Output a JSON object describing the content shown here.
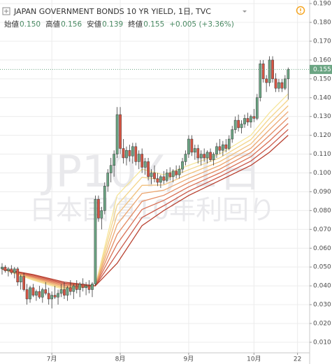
{
  "chart_data": {
    "type": "candlestick",
    "title": "JAPAN GOVERNMENT BONDS 10 YR YIELD, 1日, TVC",
    "ohlc_header": [
      "始値",
      "0.150",
      "高値",
      "0.156",
      "安値",
      "0.139",
      "終値",
      "0.155",
      "+0.005 (+3.36%)"
    ],
    "watermark": [
      "JP10Y, 1日",
      "日本国債10年利回り"
    ],
    "grid": true,
    "up_color": "#6ba583",
    "down_color": "#d75442",
    "xlim": [
      -0.67,
      98.9
    ],
    "ylim": [
      0.0044,
      0.1919
    ],
    "xticks": [
      {
        "value": 16,
        "label": "7月"
      },
      {
        "value": 38,
        "label": "8月"
      },
      {
        "value": 60,
        "label": "9月"
      },
      {
        "value": 81,
        "label": "10月"
      },
      {
        "value": 95,
        "label": "22"
      }
    ],
    "yticks": [
      {
        "value": 0.01,
        "label": "0.010"
      },
      {
        "value": 0.02,
        "label": "0.020"
      },
      {
        "value": 0.03,
        "label": "0.030"
      },
      {
        "value": 0.04,
        "label": "0.040"
      },
      {
        "value": 0.05,
        "label": "0.050"
      },
      {
        "value": 0.06,
        "label": "0.060"
      },
      {
        "value": 0.07,
        "label": "0.070"
      },
      {
        "value": 0.08,
        "label": "0.080"
      },
      {
        "value": 0.09,
        "label": "0.090"
      },
      {
        "value": 0.1,
        "label": "0.100"
      },
      {
        "value": 0.11,
        "label": "0.110"
      },
      {
        "value": 0.12,
        "label": "0.120"
      },
      {
        "value": 0.13,
        "label": "0.130"
      },
      {
        "value": 0.14,
        "label": "0.140"
      },
      {
        "value": 0.15,
        "label": "0.150"
      },
      {
        "value": 0.16,
        "label": "0.160"
      },
      {
        "value": 0.17,
        "label": "0.170"
      },
      {
        "value": 0.18,
        "label": "0.180"
      },
      {
        "value": 0.19,
        "label": "0.190"
      }
    ],
    "last_price": {
      "value": 0.155,
      "label": "0.155"
    },
    "candles": [
      [
        0.049,
        0.052,
        0.046,
        0.05
      ],
      [
        0.05,
        0.051,
        0.047,
        0.048
      ],
      [
        0.048,
        0.05,
        0.045,
        0.049
      ],
      [
        0.049,
        0.051,
        0.046,
        0.047
      ],
      [
        0.047,
        0.05,
        0.044,
        0.049
      ],
      [
        0.049,
        0.05,
        0.04,
        0.042
      ],
      [
        0.042,
        0.046,
        0.038,
        0.045
      ],
      [
        0.045,
        0.047,
        0.037,
        0.038
      ],
      [
        0.038,
        0.041,
        0.03,
        0.033
      ],
      [
        0.033,
        0.04,
        0.031,
        0.039
      ],
      [
        0.039,
        0.041,
        0.034,
        0.035
      ],
      [
        0.035,
        0.038,
        0.032,
        0.037
      ],
      [
        0.037,
        0.04,
        0.033,
        0.034
      ],
      [
        0.034,
        0.039,
        0.031,
        0.038
      ],
      [
        0.038,
        0.042,
        0.035,
        0.036
      ],
      [
        0.036,
        0.039,
        0.03,
        0.033
      ],
      [
        0.033,
        0.037,
        0.028,
        0.035
      ],
      [
        0.035,
        0.04,
        0.033,
        0.034
      ],
      [
        0.034,
        0.038,
        0.03,
        0.036
      ],
      [
        0.036,
        0.041,
        0.034,
        0.038
      ],
      [
        0.038,
        0.042,
        0.033,
        0.035
      ],
      [
        0.035,
        0.04,
        0.032,
        0.039
      ],
      [
        0.039,
        0.043,
        0.035,
        0.037
      ],
      [
        0.037,
        0.041,
        0.033,
        0.04
      ],
      [
        0.04,
        0.043,
        0.036,
        0.038
      ],
      [
        0.038,
        0.042,
        0.034,
        0.041
      ],
      [
        0.041,
        0.044,
        0.037,
        0.039
      ],
      [
        0.039,
        0.042,
        0.035,
        0.04
      ],
      [
        0.04,
        0.043,
        0.036,
        0.038
      ],
      [
        0.038,
        0.042,
        0.034,
        0.041
      ],
      [
        0.041,
        0.088,
        0.04,
        0.086
      ],
      [
        0.086,
        0.088,
        0.074,
        0.076
      ],
      [
        0.076,
        0.082,
        0.07,
        0.08
      ],
      [
        0.08,
        0.095,
        0.078,
        0.093
      ],
      [
        0.093,
        0.102,
        0.09,
        0.1
      ],
      [
        0.1,
        0.108,
        0.095,
        0.104
      ],
      [
        0.104,
        0.112,
        0.098,
        0.11
      ],
      [
        0.11,
        0.135,
        0.108,
        0.131
      ],
      [
        0.131,
        0.135,
        0.11,
        0.113
      ],
      [
        0.113,
        0.118,
        0.105,
        0.108
      ],
      [
        0.108,
        0.114,
        0.104,
        0.112
      ],
      [
        0.112,
        0.115,
        0.106,
        0.109
      ],
      [
        0.109,
        0.116,
        0.105,
        0.114
      ],
      [
        0.114,
        0.116,
        0.104,
        0.106
      ],
      [
        0.106,
        0.112,
        0.102,
        0.11
      ],
      [
        0.11,
        0.113,
        0.1,
        0.103
      ],
      [
        0.103,
        0.108,
        0.099,
        0.106
      ],
      [
        0.106,
        0.108,
        0.096,
        0.098
      ],
      [
        0.098,
        0.102,
        0.094,
        0.1
      ],
      [
        0.1,
        0.104,
        0.095,
        0.097
      ],
      [
        0.097,
        0.1,
        0.093,
        0.095
      ],
      [
        0.095,
        0.099,
        0.092,
        0.098
      ],
      [
        0.098,
        0.101,
        0.094,
        0.096
      ],
      [
        0.096,
        0.102,
        0.095,
        0.1
      ],
      [
        0.1,
        0.103,
        0.096,
        0.098
      ],
      [
        0.098,
        0.102,
        0.095,
        0.101
      ],
      [
        0.101,
        0.104,
        0.097,
        0.099
      ],
      [
        0.099,
        0.104,
        0.097,
        0.102
      ],
      [
        0.102,
        0.108,
        0.1,
        0.106
      ],
      [
        0.106,
        0.112,
        0.104,
        0.11
      ],
      [
        0.11,
        0.12,
        0.108,
        0.118
      ],
      [
        0.118,
        0.12,
        0.109,
        0.111
      ],
      [
        0.111,
        0.115,
        0.107,
        0.113
      ],
      [
        0.113,
        0.115,
        0.105,
        0.108
      ],
      [
        0.108,
        0.112,
        0.104,
        0.11
      ],
      [
        0.11,
        0.113,
        0.106,
        0.108
      ],
      [
        0.108,
        0.112,
        0.105,
        0.111
      ],
      [
        0.111,
        0.113,
        0.106,
        0.107
      ],
      [
        0.107,
        0.111,
        0.104,
        0.11
      ],
      [
        0.11,
        0.116,
        0.108,
        0.114
      ],
      [
        0.114,
        0.118,
        0.11,
        0.112
      ],
      [
        0.112,
        0.117,
        0.109,
        0.115
      ],
      [
        0.115,
        0.118,
        0.111,
        0.113
      ],
      [
        0.113,
        0.12,
        0.112,
        0.118
      ],
      [
        0.118,
        0.125,
        0.116,
        0.123
      ],
      [
        0.123,
        0.13,
        0.121,
        0.128
      ],
      [
        0.128,
        0.131,
        0.122,
        0.124
      ],
      [
        0.124,
        0.128,
        0.121,
        0.126
      ],
      [
        0.126,
        0.131,
        0.124,
        0.129
      ],
      [
        0.129,
        0.132,
        0.125,
        0.127
      ],
      [
        0.127,
        0.131,
        0.124,
        0.13
      ],
      [
        0.13,
        0.134,
        0.127,
        0.129
      ],
      [
        0.129,
        0.142,
        0.128,
        0.14
      ],
      [
        0.14,
        0.16,
        0.138,
        0.158
      ],
      [
        0.158,
        0.16,
        0.148,
        0.15
      ],
      [
        0.15,
        0.152,
        0.143,
        0.148
      ],
      [
        0.148,
        0.162,
        0.146,
        0.16
      ],
      [
        0.16,
        0.162,
        0.148,
        0.15
      ],
      [
        0.15,
        0.153,
        0.143,
        0.145
      ],
      [
        0.145,
        0.15,
        0.143,
        0.148
      ],
      [
        0.148,
        0.15,
        0.143,
        0.145
      ],
      [
        0.145,
        0.152,
        0.144,
        0.15
      ],
      [
        0.15,
        0.156,
        0.139,
        0.155
      ]
    ],
    "series": [
      {
        "color": "#f6e59a",
        "x": [
          0,
          10,
          20,
          30,
          37,
          45,
          52,
          60,
          70,
          80,
          86,
          92
        ],
        "values": [
          0.049,
          0.043,
          0.038,
          0.04,
          0.088,
          0.102,
          0.099,
          0.104,
          0.11,
          0.12,
          0.132,
          0.142
        ]
      },
      {
        "color": "#f4d58a",
        "x": [
          0,
          10,
          20,
          30,
          37,
          45,
          52,
          60,
          70,
          80,
          86,
          92
        ],
        "values": [
          0.049,
          0.0434,
          0.0386,
          0.04,
          0.0829,
          0.0977,
          0.0963,
          0.1017,
          0.108,
          0.1177,
          0.129,
          0.1389
        ]
      },
      {
        "color": "#f1c07c",
        "x": [
          0,
          10,
          20,
          30,
          37,
          45,
          52,
          60,
          70,
          80,
          86,
          92
        ],
        "values": [
          0.049,
          0.0439,
          0.0391,
          0.04,
          0.0777,
          0.0934,
          0.0936,
          0.0994,
          0.106,
          0.1154,
          0.126,
          0.1357
        ]
      },
      {
        "color": "#eca670",
        "x": [
          0,
          10,
          20,
          30,
          37,
          45,
          52,
          60,
          70,
          80,
          86,
          92
        ],
        "values": [
          0.049,
          0.0443,
          0.0397,
          0.04,
          0.0726,
          0.0891,
          0.0908,
          0.0971,
          0.104,
          0.1131,
          0.123,
          0.1326
        ]
      },
      {
        "color": "#e48b62",
        "x": [
          0,
          10,
          20,
          30,
          37,
          45,
          52,
          60,
          70,
          80,
          86,
          92
        ],
        "values": [
          0.049,
          0.0447,
          0.0403,
          0.04,
          0.0674,
          0.0849,
          0.0881,
          0.0949,
          0.102,
          0.1109,
          0.12,
          0.1294
        ]
      },
      {
        "color": "#d97054",
        "x": [
          0,
          10,
          20,
          30,
          37,
          45,
          52,
          60,
          70,
          80,
          86,
          92
        ],
        "values": [
          0.049,
          0.0451,
          0.0409,
          0.04,
          0.0623,
          0.0806,
          0.0854,
          0.0926,
          0.1,
          0.1086,
          0.117,
          0.1263
        ]
      },
      {
        "color": "#c95646",
        "x": [
          0,
          10,
          20,
          30,
          37,
          45,
          52,
          60,
          70,
          80,
          86,
          92
        ],
        "values": [
          0.049,
          0.0456,
          0.0414,
          0.04,
          0.0571,
          0.0763,
          0.0826,
          0.0903,
          0.098,
          0.1063,
          0.114,
          0.1231
        ]
      },
      {
        "color": "#b8402f",
        "x": [
          0,
          10,
          20,
          30,
          37,
          45,
          52,
          60,
          70,
          80,
          86,
          92
        ],
        "values": [
          0.049,
          0.046,
          0.042,
          0.04,
          0.052,
          0.072,
          0.08,
          0.088,
          0.096,
          0.104,
          0.111,
          0.12
        ]
      }
    ]
  }
}
